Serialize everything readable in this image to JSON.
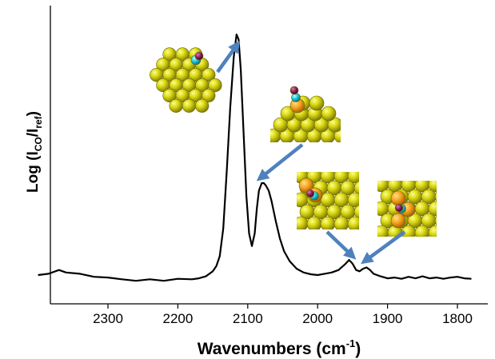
{
  "chart_data": {
    "type": "line",
    "title": "",
    "xlabel": "Wavenumbers (cm",
    "xlabel_sup": "-1",
    "xlabel_close": ")",
    "ylabel_prefix": "Log (I",
    "ylabel_sub1": "CO",
    "ylabel_mid": "/I",
    "ylabel_sub2": "ref",
    "ylabel_close": ")",
    "x_reversed": true,
    "xlim": [
      2410,
      1775
    ],
    "ylim": [
      0,
      1
    ],
    "y_ticks_shown": false,
    "grid": false,
    "x_ticks": [
      2300,
      2200,
      2100,
      2000,
      1900,
      1800
    ],
    "x_tick_labels": [
      "2300",
      "2200",
      "2100",
      "2000",
      "1900",
      "1800"
    ],
    "series": [
      {
        "color": "#000000",
        "x": [
          2400,
          2385,
          2370,
          2360,
          2340,
          2320,
          2300,
          2280,
          2260,
          2240,
          2220,
          2200,
          2180,
          2170,
          2160,
          2150,
          2145,
          2140,
          2135,
          2130,
          2125,
          2120,
          2116,
          2113,
          2110,
          2106,
          2102,
          2098,
          2094,
          2090,
          2087,
          2084,
          2080,
          2077,
          2074,
          2070,
          2066,
          2060,
          2054,
          2048,
          2040,
          2030,
          2020,
          2010,
          2000,
          1990,
          1980,
          1970,
          1960,
          1955,
          1950,
          1945,
          1940,
          1935,
          1930,
          1925,
          1920,
          1915,
          1910,
          1900,
          1890,
          1880,
          1870,
          1860,
          1850,
          1840,
          1830,
          1820,
          1810,
          1800,
          1790,
          1780
        ],
        "y": [
          0.035,
          0.04,
          0.055,
          0.045,
          0.04,
          0.028,
          0.025,
          0.018,
          0.012,
          0.018,
          0.012,
          0.02,
          0.018,
          0.022,
          0.03,
          0.05,
          0.07,
          0.11,
          0.22,
          0.45,
          0.7,
          0.9,
          0.99,
          0.97,
          0.85,
          0.6,
          0.35,
          0.2,
          0.15,
          0.2,
          0.3,
          0.37,
          0.4,
          0.4,
          0.39,
          0.37,
          0.33,
          0.25,
          0.18,
          0.13,
          0.09,
          0.06,
          0.045,
          0.038,
          0.035,
          0.04,
          0.045,
          0.055,
          0.08,
          0.095,
          0.08,
          0.055,
          0.05,
          0.06,
          0.065,
          0.055,
          0.04,
          0.035,
          0.03,
          0.022,
          0.025,
          0.02,
          0.028,
          0.022,
          0.03,
          0.022,
          0.025,
          0.02,
          0.025,
          0.028,
          0.022,
          0.02
        ]
      }
    ],
    "annotations": [
      {
        "kind": "arrow",
        "color": "#4f81bd",
        "points_to_x": 2115,
        "points_to_y": 0.95,
        "from_figure_fraction": [
          0.44,
          0.195
        ],
        "label": "cluster-top-view"
      },
      {
        "kind": "arrow",
        "color": "#4f81bd",
        "points_to_x": 2082,
        "points_to_y": 0.42,
        "from_figure_fraction": [
          0.61,
          0.4
        ],
        "label": "cluster-side-view"
      },
      {
        "kind": "arrow",
        "color": "#4f81bd",
        "points_to_x": 1950,
        "points_to_y": 0.11,
        "from_figure_fraction": [
          0.66,
          0.63
        ],
        "label": "cluster-bridge-view"
      },
      {
        "kind": "arrow",
        "color": "#4f81bd",
        "points_to_x": 1935,
        "points_to_y": 0.09,
        "from_figure_fraction": [
          0.815,
          0.63
        ],
        "label": "cluster-hollow-view"
      }
    ]
  }
}
